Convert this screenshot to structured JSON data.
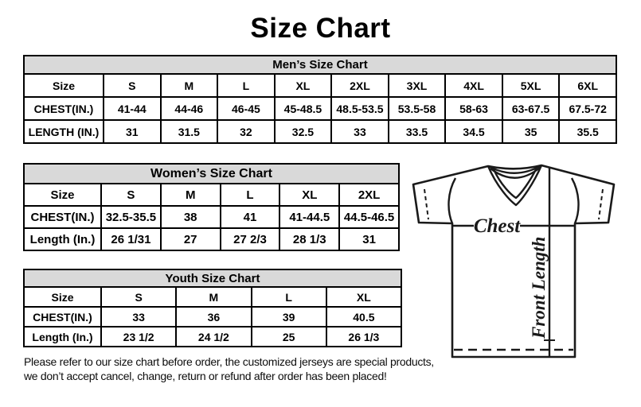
{
  "title": "Size Chart",
  "tables": {
    "men": {
      "title": "Men’s Size Chart",
      "row_headers": [
        "Size",
        "CHEST(IN.)",
        "LENGTH (IN.)"
      ],
      "sizes": [
        "S",
        "M",
        "L",
        "XL",
        "2XL",
        "3XL",
        "4XL",
        "5XL",
        "6XL"
      ],
      "chest": [
        "41-44",
        "44-46",
        "46-45",
        "45-48.5",
        "48.5-53.5",
        "53.5-58",
        "58-63",
        "63-67.5",
        "67.5-72"
      ],
      "length": [
        "31",
        "31.5",
        "32",
        "32.5",
        "33",
        "33.5",
        "34.5",
        "35",
        "35.5"
      ]
    },
    "women": {
      "title": "Women’s Size Chart",
      "row_headers": [
        "Size",
        "CHEST(IN.)",
        "Length (In.)"
      ],
      "sizes": [
        "S",
        "M",
        "L",
        "XL",
        "2XL"
      ],
      "chest": [
        "32.5-35.5",
        "38",
        "41",
        "41-44.5",
        "44.5-46.5"
      ],
      "length": [
        "26 1/31",
        "27",
        "27 2/3",
        "28 1/3",
        "31"
      ]
    },
    "youth": {
      "title": "Youth Size Chart",
      "row_headers": [
        "Size",
        "CHEST(IN.)",
        "Length (In.)"
      ],
      "sizes": [
        "S",
        "M",
        "L",
        "XL"
      ],
      "chest": [
        "33",
        "36",
        "39",
        "40.5"
      ],
      "length": [
        "23 1/2",
        "24 1/2",
        "25",
        "26 1/3"
      ]
    }
  },
  "diagram": {
    "chest_label": "Chest",
    "front_length_label": "Front Length"
  },
  "footer": {
    "lines": [
      "Please refer to our size chart before order, the customized jerseys are special products,",
      "we don’t accept cancel, change, return or refund after order has been placed!"
    ]
  },
  "colors": {
    "header_bg": "#d9d9d9",
    "line": "#1a1a1a",
    "text": "#000000",
    "background": "#ffffff"
  }
}
